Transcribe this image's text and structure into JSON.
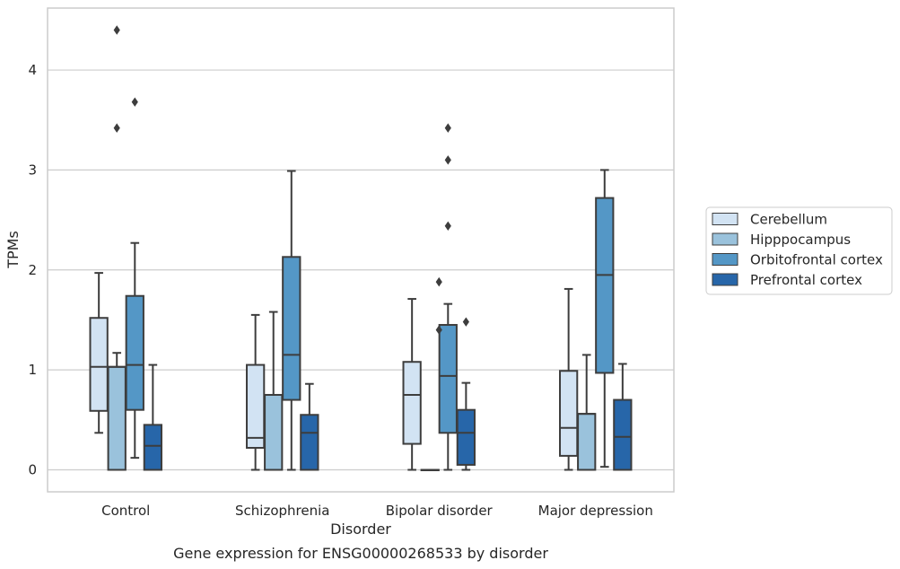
{
  "chart_data": {
    "type": "box",
    "xlabel": "Disorder",
    "ylabel": "TPMs",
    "caption": "Gene expression for ENSG00000268533 by disorder",
    "ylim": [
      -0.22,
      4.62
    ],
    "yticks": [
      0,
      1,
      2,
      3,
      4
    ],
    "grid": "horizontal",
    "legend_position": "right",
    "categories": [
      "Control",
      "Schizophrenia",
      "Bipolar disorder",
      "Major depression"
    ],
    "series": [
      {
        "name": "Cerebellum",
        "color": "#d2e3f3",
        "boxes": [
          {
            "whisker_low": 0.37,
            "q1": 0.59,
            "median": 1.03,
            "q3": 1.52,
            "whisker_high": 1.97,
            "outliers": []
          },
          {
            "whisker_low": 0.0,
            "q1": 0.22,
            "median": 0.32,
            "q3": 1.05,
            "whisker_high": 1.55,
            "outliers": []
          },
          {
            "whisker_low": 0.0,
            "q1": 0.26,
            "median": 0.75,
            "q3": 1.08,
            "whisker_high": 1.71,
            "outliers": []
          },
          {
            "whisker_low": 0.0,
            "q1": 0.14,
            "median": 0.42,
            "q3": 0.99,
            "whisker_high": 1.81,
            "outliers": []
          }
        ]
      },
      {
        "name": "Hipppocampus",
        "color": "#9ac2dc",
        "boxes": [
          {
            "whisker_low": 0.0,
            "q1": 0.0,
            "median": 1.03,
            "q3": 1.03,
            "whisker_high": 1.17,
            "outliers": [
              3.42,
              4.4
            ]
          },
          {
            "whisker_low": 0.0,
            "q1": 0.0,
            "median": 0.75,
            "q3": 0.75,
            "whisker_high": 1.58,
            "outliers": []
          },
          {
            "whisker_low": 0.0,
            "q1": 0.0,
            "median": 0.0,
            "q3": 0.0,
            "whisker_high": 0.0,
            "outliers": []
          },
          {
            "whisker_low": 0.0,
            "q1": 0.0,
            "median": 0.56,
            "q3": 0.56,
            "whisker_high": 1.15,
            "outliers": []
          }
        ]
      },
      {
        "name": "Orbitofrontal cortex",
        "color": "#5497c6",
        "boxes": [
          {
            "whisker_low": 0.12,
            "q1": 0.6,
            "median": 1.05,
            "q3": 1.74,
            "whisker_high": 2.27,
            "outliers": [
              3.68
            ]
          },
          {
            "whisker_low": 0.0,
            "q1": 0.7,
            "median": 1.15,
            "q3": 2.13,
            "whisker_high": 2.99,
            "outliers": []
          },
          {
            "whisker_low": 0.0,
            "q1": 0.37,
            "median": 0.94,
            "q3": 1.45,
            "whisker_high": 1.66,
            "outliers": [
              2.44,
              3.1,
              3.42
            ]
          },
          {
            "whisker_low": 0.03,
            "q1": 0.97,
            "median": 1.95,
            "q3": 2.72,
            "whisker_high": 3.0,
            "outliers": []
          }
        ]
      },
      {
        "name": "Prefrontal cortex",
        "color": "#2766a9",
        "boxes": [
          {
            "whisker_low": 0.0,
            "q1": 0.0,
            "median": 0.24,
            "q3": 0.45,
            "whisker_high": 1.05,
            "outliers": []
          },
          {
            "whisker_low": 0.0,
            "q1": 0.0,
            "median": 0.37,
            "q3": 0.55,
            "whisker_high": 0.86,
            "outliers": []
          },
          {
            "whisker_low": 0.0,
            "q1": 0.05,
            "median": 0.37,
            "q3": 0.6,
            "whisker_high": 0.87,
            "outliers": [
              1.48
            ]
          },
          {
            "whisker_low": 0.0,
            "q1": 0.0,
            "median": 0.33,
            "q3": 0.7,
            "whisker_high": 1.06,
            "outliers": []
          }
        ]
      }
    ],
    "extra_outliers": [
      {
        "category_index": 2,
        "series_index": 1,
        "values": [
          1.4,
          1.88
        ]
      }
    ]
  }
}
